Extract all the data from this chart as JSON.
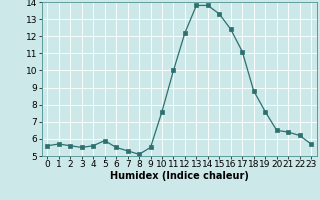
{
  "x": [
    0,
    1,
    2,
    3,
    4,
    5,
    6,
    7,
    8,
    9,
    10,
    11,
    12,
    13,
    14,
    15,
    16,
    17,
    18,
    19,
    20,
    21,
    22,
    23
  ],
  "y": [
    5.6,
    5.7,
    5.6,
    5.5,
    5.6,
    5.9,
    5.5,
    5.3,
    5.1,
    5.5,
    7.6,
    10.0,
    12.2,
    13.8,
    13.8,
    13.3,
    12.4,
    11.1,
    8.8,
    7.6,
    6.5,
    6.4,
    6.2,
    5.7
  ],
  "line_color": "#2d7070",
  "marker": "s",
  "marker_size": 2.5,
  "bg_color": "#cce8e8",
  "grid_color": "#ffffff",
  "xlabel": "Humidex (Indice chaleur)",
  "xlabel_fontsize": 7,
  "tick_fontsize": 6.5,
  "ylim": [
    5,
    14
  ],
  "yticks": [
    5,
    6,
    7,
    8,
    9,
    10,
    11,
    12,
    13,
    14
  ],
  "xlim": [
    -0.5,
    23.5
  ],
  "xticks": [
    0,
    1,
    2,
    3,
    4,
    5,
    6,
    7,
    8,
    9,
    10,
    11,
    12,
    13,
    14,
    15,
    16,
    17,
    18,
    19,
    20,
    21,
    22,
    23
  ]
}
